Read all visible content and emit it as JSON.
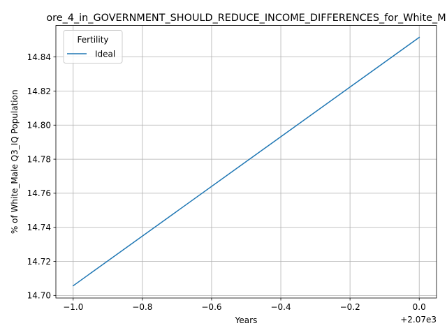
{
  "chart_data": {
    "type": "line",
    "title": "ore_4_in_GOVERNMENT_SHOULD_REDUCE_INCOME_DIFFERENCES_for_White_M",
    "xlabel": "Years",
    "ylabel": "% of White_Male Q3_IQ Population",
    "x_offset_text": "+2.07e3",
    "xlim": [
      -1.05,
      0.05
    ],
    "ylim": [
      14.6985,
      14.8585
    ],
    "x_ticks": [
      -1.0,
      -0.8,
      -0.6,
      -0.4,
      -0.2,
      0.0
    ],
    "x_tick_labels": [
      "−1.0",
      "−0.8",
      "−0.6",
      "−0.4",
      "−0.2",
      "0.0"
    ],
    "y_ticks": [
      14.7,
      14.72,
      14.74,
      14.76,
      14.78,
      14.8,
      14.82,
      14.84
    ],
    "y_tick_labels": [
      "14.70",
      "14.72",
      "14.74",
      "14.76",
      "14.78",
      "14.80",
      "14.82",
      "14.84"
    ],
    "grid": true,
    "legend": {
      "title": "Fertility",
      "placement": "top-left"
    },
    "series": [
      {
        "name": "Ideal",
        "color": "#1f77b4",
        "x": [
          -1.0,
          0.0
        ],
        "y": [
          14.7057,
          14.8515
        ]
      }
    ]
  }
}
